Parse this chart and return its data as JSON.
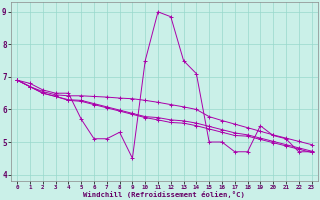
{
  "xlabel": "Windchill (Refroidissement éolien,°C)",
  "xlim": [
    -0.5,
    23.5
  ],
  "ylim": [
    3.8,
    9.3
  ],
  "yticks": [
    4,
    5,
    6,
    7,
    8,
    9
  ],
  "xticks": [
    0,
    1,
    2,
    3,
    4,
    5,
    6,
    7,
    8,
    9,
    10,
    11,
    12,
    13,
    14,
    15,
    16,
    17,
    18,
    19,
    20,
    21,
    22,
    23
  ],
  "bg_color": "#caf0e8",
  "line_color": "#aa00aa",
  "grid_color": "#98d8cc",
  "series": [
    [
      6.9,
      6.8,
      6.6,
      6.5,
      6.5,
      5.7,
      5.1,
      5.1,
      5.3,
      4.5,
      7.5,
      9.0,
      8.85,
      7.5,
      7.1,
      5.0,
      5.0,
      4.7,
      4.7,
      5.5,
      5.2,
      5.1,
      4.7,
      4.7
    ],
    [
      6.9,
      6.7,
      6.55,
      6.45,
      6.42,
      6.42,
      6.4,
      6.38,
      6.35,
      6.33,
      6.28,
      6.22,
      6.15,
      6.08,
      6.0,
      5.78,
      5.66,
      5.55,
      5.44,
      5.33,
      5.22,
      5.12,
      5.02,
      4.92
    ],
    [
      6.9,
      6.7,
      6.5,
      6.4,
      6.3,
      6.28,
      6.18,
      6.08,
      5.98,
      5.88,
      5.78,
      5.75,
      5.68,
      5.65,
      5.58,
      5.48,
      5.38,
      5.28,
      5.22,
      5.12,
      5.02,
      4.92,
      4.82,
      4.72
    ],
    [
      6.9,
      6.7,
      6.5,
      6.4,
      6.28,
      6.25,
      6.15,
      6.05,
      5.95,
      5.85,
      5.75,
      5.68,
      5.6,
      5.58,
      5.5,
      5.4,
      5.3,
      5.2,
      5.18,
      5.08,
      4.98,
      4.88,
      4.78,
      4.68
    ]
  ]
}
